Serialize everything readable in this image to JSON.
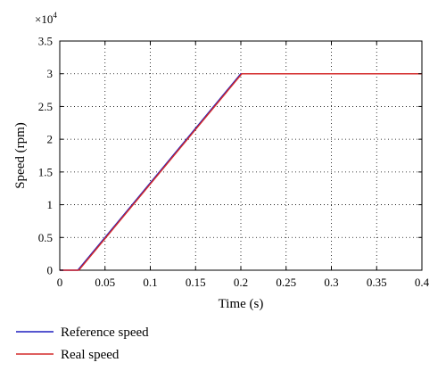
{
  "chart_data": {
    "type": "line",
    "xlabel": "Time (s)",
    "ylabel": "Speed (rpm)",
    "xlim": [
      0,
      0.4
    ],
    "ylim": [
      0,
      35000
    ],
    "x_ticks": [
      0,
      0.05,
      0.1,
      0.15,
      0.2,
      0.25,
      0.3,
      0.35,
      0.4
    ],
    "x_tick_labels": [
      "0",
      "0.05",
      "0.1",
      "0.15",
      "0.2",
      "0.25",
      "0.3",
      "0.35",
      "0.4"
    ],
    "y_ticks": [
      0,
      5000,
      10000,
      15000,
      20000,
      25000,
      30000,
      35000
    ],
    "y_tick_labels": [
      "0",
      "0.5",
      "1",
      "1.5",
      "2",
      "2.5",
      "3",
      "3.5"
    ],
    "y_multiplier": {
      "base": "×10",
      "exponent": "4"
    },
    "grid": true,
    "legend_position": "below-left",
    "series": [
      {
        "name": "Reference speed",
        "color": "#1f1fbf",
        "x": [
          0,
          0.02,
          0.2,
          0.4
        ],
        "y": [
          0,
          0,
          30000,
          30000
        ]
      },
      {
        "name": "Real speed",
        "color": "#d42a2a",
        "x": [
          0,
          0.021,
          0.201,
          0.4
        ],
        "y": [
          0,
          0,
          30000,
          30000
        ]
      }
    ]
  }
}
